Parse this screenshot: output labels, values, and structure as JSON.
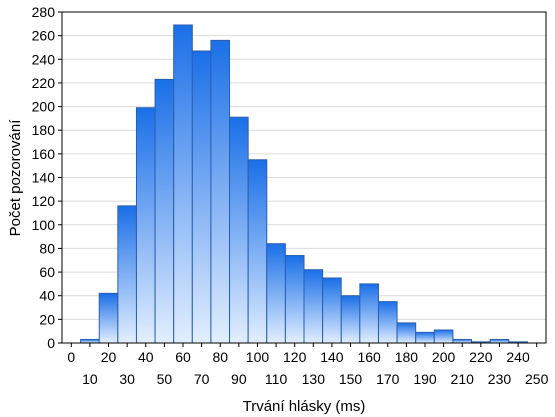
{
  "chart_data": {
    "type": "bar",
    "title": "",
    "xlabel": "Trvání hlásky (ms)",
    "ylabel": "Počet pozorování",
    "ylim": [
      0,
      280
    ],
    "yticks": [
      0,
      20,
      40,
      60,
      80,
      100,
      120,
      140,
      160,
      180,
      200,
      220,
      240,
      260,
      280
    ],
    "x_bin_width": 10,
    "x_range": [
      -5,
      255
    ],
    "xticks_upper": [
      0,
      20,
      40,
      60,
      80,
      100,
      120,
      140,
      160,
      180,
      200,
      220,
      240
    ],
    "xticks_lower": [
      10,
      30,
      50,
      70,
      90,
      110,
      130,
      150,
      170,
      190,
      210,
      230,
      250
    ],
    "bins": [
      0,
      10,
      20,
      30,
      40,
      50,
      60,
      70,
      80,
      90,
      100,
      110,
      120,
      130,
      140,
      150,
      160,
      170,
      180,
      190,
      200,
      210,
      220,
      230,
      240
    ],
    "values": [
      0,
      3,
      42,
      116,
      199,
      223,
      269,
      247,
      256,
      191,
      155,
      84,
      74,
      62,
      55,
      40,
      50,
      35,
      17,
      9,
      11,
      3,
      1,
      3,
      1
    ],
    "colors": {
      "bar_top": "#1a6fe8",
      "bar_bottom": "#e3efff",
      "bar_stroke": "#2a5fae",
      "grid": "#dcdcdc"
    },
    "grid": true
  }
}
